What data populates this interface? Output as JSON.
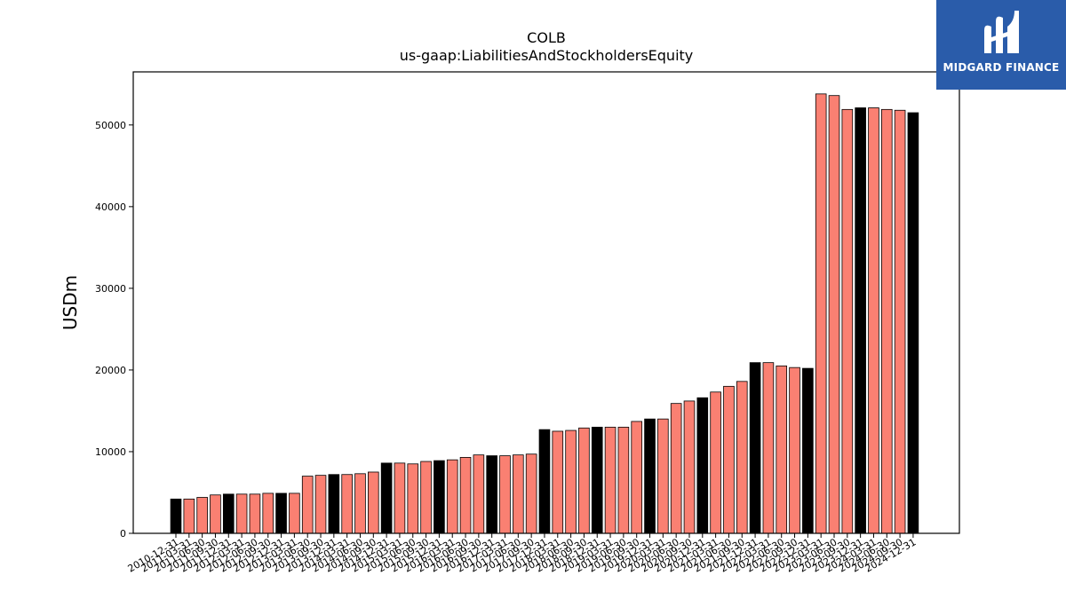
{
  "chart_data": {
    "type": "bar",
    "title": "COLB",
    "subtitle": "us-gaap:LiabilitiesAndStockholdersEquity",
    "xlabel": "",
    "ylabel": "USDm",
    "ylim": [
      0,
      56500
    ],
    "yticks": [
      0,
      10000,
      20000,
      30000,
      40000,
      50000
    ],
    "colors": {
      "annual": "#000000",
      "quarterly": "#fa8072",
      "edge": "#000000"
    },
    "categories": [
      "2010-12-31",
      "2011-03-31",
      "2011-06-30",
      "2011-09-30",
      "2011-12-31",
      "2012-03-31",
      "2012-06-30",
      "2012-09-30",
      "2012-12-31",
      "2013-03-31",
      "2013-06-30",
      "2013-09-30",
      "2013-12-31",
      "2014-03-31",
      "2014-06-30",
      "2014-09-30",
      "2014-12-31",
      "2015-03-31",
      "2015-06-30",
      "2015-09-30",
      "2015-12-31",
      "2016-03-31",
      "2016-06-30",
      "2016-09-30",
      "2016-12-31",
      "2017-03-31",
      "2017-06-30",
      "2017-09-30",
      "2017-12-31",
      "2018-03-31",
      "2018-06-30",
      "2018-09-30",
      "2018-12-31",
      "2019-03-31",
      "2019-06-30",
      "2019-09-30",
      "2019-12-31",
      "2020-03-31",
      "2020-06-30",
      "2020-09-30",
      "2020-12-31",
      "2021-03-31",
      "2021-06-30",
      "2021-09-30",
      "2021-12-31",
      "2022-03-31",
      "2022-06-30",
      "2022-09-30",
      "2022-12-31",
      "2023-03-31",
      "2023-06-30",
      "2023-09-30",
      "2023-12-31",
      "2024-03-31",
      "2024-06-30",
      "2024-09-30",
      "2024-12-31"
    ],
    "values": [
      4200,
      4200,
      4400,
      4700,
      4800,
      4800,
      4800,
      4900,
      4900,
      4900,
      7000,
      7100,
      7200,
      7200,
      7300,
      7500,
      8600,
      8600,
      8500,
      8800,
      8900,
      9000,
      9300,
      9600,
      9500,
      9500,
      9600,
      9700,
      12700,
      12500,
      12600,
      12900,
      13000,
      13000,
      13000,
      13700,
      14000,
      14000,
      15900,
      16200,
      16600,
      17300,
      18000,
      18600,
      20900,
      20900,
      20500,
      20300,
      20200,
      53800,
      53600,
      51900,
      52100,
      52100,
      51900,
      51800,
      51500
    ],
    "annual": [
      true,
      false,
      false,
      false,
      true,
      false,
      false,
      false,
      true,
      false,
      false,
      false,
      true,
      false,
      false,
      false,
      true,
      false,
      false,
      false,
      true,
      false,
      false,
      false,
      true,
      false,
      false,
      false,
      true,
      false,
      false,
      false,
      true,
      false,
      false,
      false,
      true,
      false,
      false,
      false,
      true,
      false,
      false,
      false,
      true,
      false,
      false,
      false,
      true,
      false,
      false,
      false,
      true,
      false,
      false,
      false,
      true
    ]
  },
  "logo": {
    "text": "MIDGARD FINANCE",
    "icon": "midgard-logo-icon",
    "color": "#2a5caa"
  }
}
